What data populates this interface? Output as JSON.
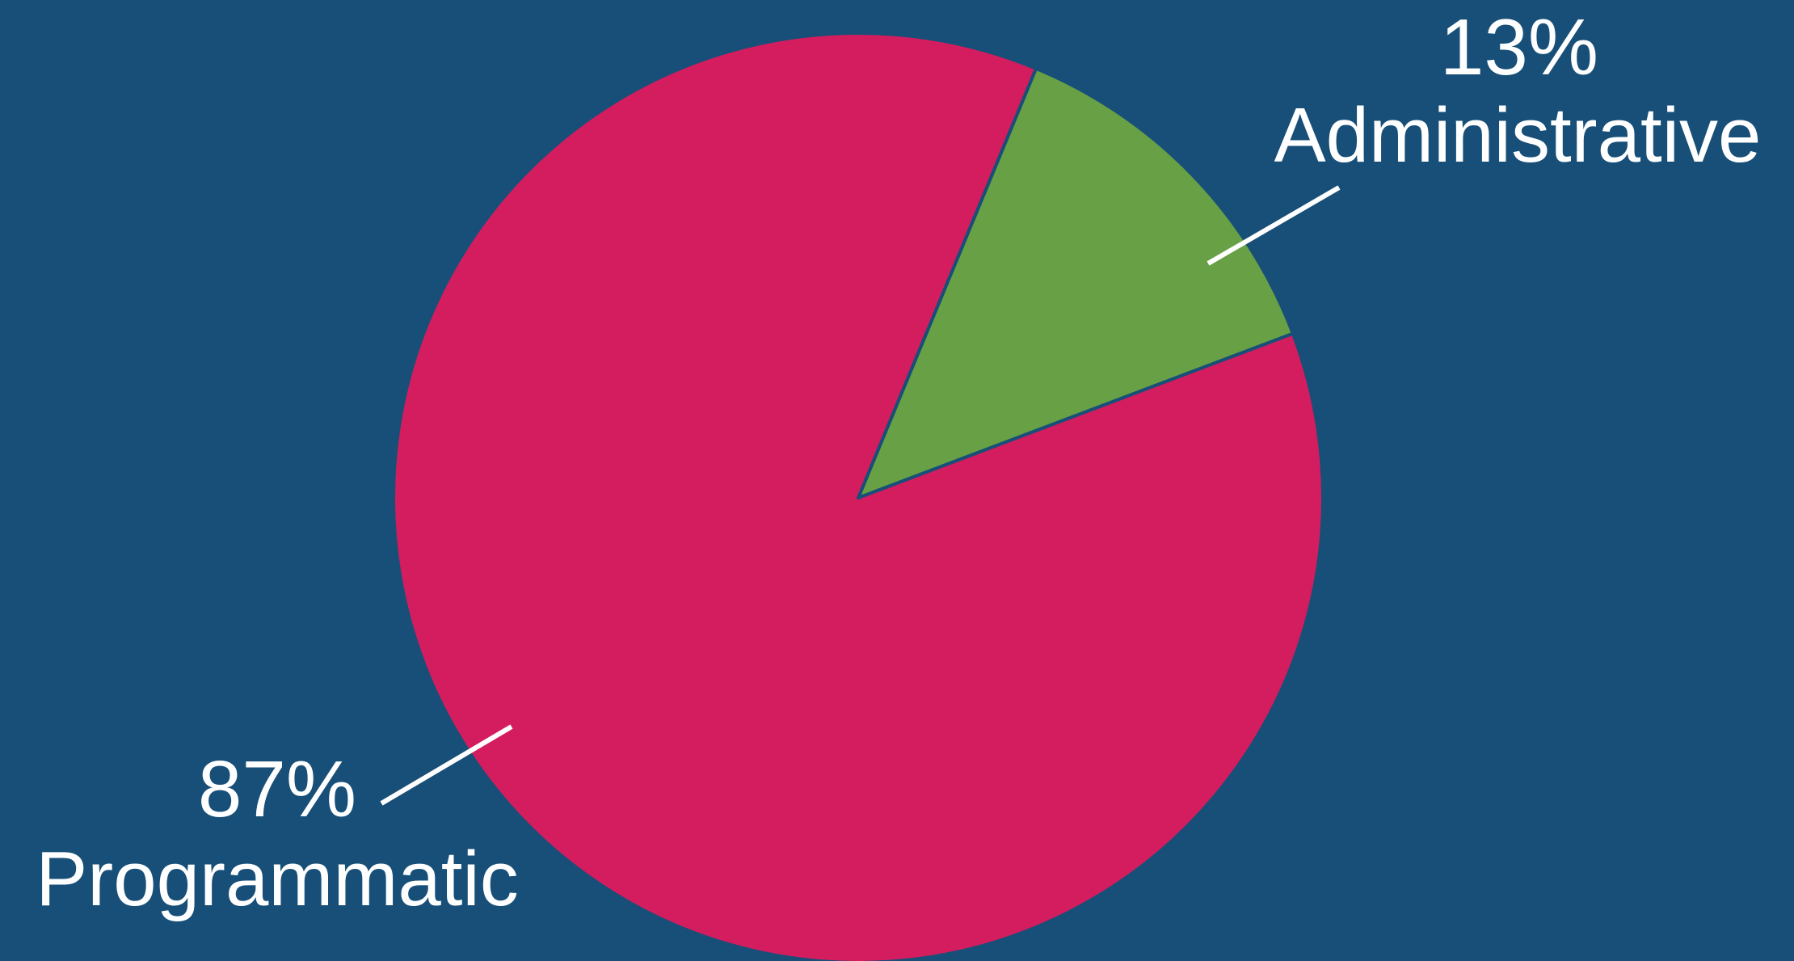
{
  "chart_data": {
    "type": "pie",
    "background": "#174f78",
    "slices": [
      {
        "label": "Administrative",
        "percent_label": "13%",
        "value": 13,
        "color": "#67a045"
      },
      {
        "label": "Programmatic",
        "percent_label": "87%",
        "value": 87,
        "color": "#d41d5e"
      }
    ]
  }
}
